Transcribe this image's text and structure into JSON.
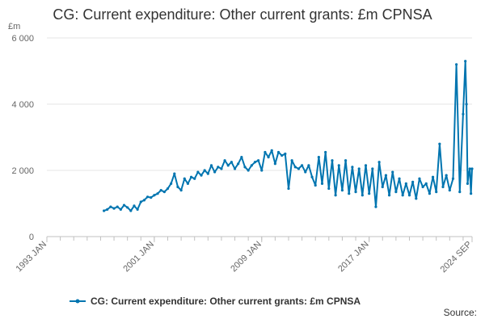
{
  "title": "CG: Current expenditure: Other current grants: £m CPNSA",
  "source_label": "Source:",
  "colors": {
    "series": "#0075b0",
    "grid": "#e6e6e6",
    "axis": "#c0c0c0",
    "text": "#666666"
  },
  "chart_data": {
    "type": "line",
    "title": "CG: Current expenditure: Other current grants: £m CPNSA",
    "unit_label": "£m",
    "xlabel": "",
    "ylabel": "",
    "x_range": [
      "1993-01",
      "2024-09"
    ],
    "ylim": [
      0,
      6000
    ],
    "y_ticks": [
      {
        "value": 0,
        "label": "0"
      },
      {
        "value": 2000,
        "label": "2 000"
      },
      {
        "value": 4000,
        "label": "4 000"
      },
      {
        "value": 6000,
        "label": "6 000"
      }
    ],
    "x_ticks": [
      {
        "date": "1993-01",
        "label": "1993 JAN"
      },
      {
        "date": "2001-01",
        "label": "2001 JAN"
      },
      {
        "date": "2009-01",
        "label": "2009 JAN"
      },
      {
        "date": "2017-01",
        "label": "2017 JAN"
      },
      {
        "date": "2024-09",
        "label": "2024 SEP"
      }
    ],
    "grid": true,
    "legend_position": "bottom",
    "series": [
      {
        "name": "CG: Current expenditure: Other current grants: £m CPNSA",
        "points": [
          [
            "1997-04",
            780
          ],
          [
            "1997-07",
            820
          ],
          [
            "1997-10",
            900
          ],
          [
            "1998-01",
            850
          ],
          [
            "1998-04",
            900
          ],
          [
            "1998-07",
            820
          ],
          [
            "1998-10",
            950
          ],
          [
            "1999-01",
            880
          ],
          [
            "1999-04",
            780
          ],
          [
            "1999-07",
            930
          ],
          [
            "1999-10",
            820
          ],
          [
            "2000-01",
            1050
          ],
          [
            "2000-04",
            1100
          ],
          [
            "2000-07",
            1200
          ],
          [
            "2000-10",
            1180
          ],
          [
            "2001-01",
            1250
          ],
          [
            "2001-04",
            1300
          ],
          [
            "2001-07",
            1400
          ],
          [
            "2001-10",
            1350
          ],
          [
            "2002-01",
            1450
          ],
          [
            "2002-04",
            1600
          ],
          [
            "2002-07",
            1900
          ],
          [
            "2002-10",
            1500
          ],
          [
            "2003-01",
            1400
          ],
          [
            "2003-04",
            1750
          ],
          [
            "2003-07",
            1600
          ],
          [
            "2003-10",
            1800
          ],
          [
            "2004-01",
            1750
          ],
          [
            "2004-04",
            1950
          ],
          [
            "2004-07",
            1850
          ],
          [
            "2004-10",
            2000
          ],
          [
            "2005-01",
            1900
          ],
          [
            "2005-04",
            2150
          ],
          [
            "2005-07",
            1950
          ],
          [
            "2005-10",
            2100
          ],
          [
            "2006-01",
            2050
          ],
          [
            "2006-04",
            2300
          ],
          [
            "2006-07",
            2150
          ],
          [
            "2006-10",
            2250
          ],
          [
            "2007-01",
            2050
          ],
          [
            "2007-04",
            2200
          ],
          [
            "2007-07",
            2400
          ],
          [
            "2007-10",
            2100
          ],
          [
            "2008-01",
            2000
          ],
          [
            "2008-04",
            2150
          ],
          [
            "2008-07",
            2250
          ],
          [
            "2008-10",
            2300
          ],
          [
            "2009-01",
            2000
          ],
          [
            "2009-04",
            2550
          ],
          [
            "2009-07",
            2400
          ],
          [
            "2009-10",
            2600
          ],
          [
            "2010-01",
            2200
          ],
          [
            "2010-04",
            2550
          ],
          [
            "2010-07",
            2450
          ],
          [
            "2010-10",
            2500
          ],
          [
            "2011-01",
            1450
          ],
          [
            "2011-04",
            2300
          ],
          [
            "2011-07",
            2100
          ],
          [
            "2011-10",
            2050
          ],
          [
            "2012-01",
            2150
          ],
          [
            "2012-04",
            1950
          ],
          [
            "2012-07",
            2150
          ],
          [
            "2012-10",
            1800
          ],
          [
            "2013-01",
            1550
          ],
          [
            "2013-04",
            2400
          ],
          [
            "2013-07",
            1600
          ],
          [
            "2013-10",
            2550
          ],
          [
            "2014-01",
            1450
          ],
          [
            "2014-04",
            2300
          ],
          [
            "2014-07",
            1250
          ],
          [
            "2014-10",
            2150
          ],
          [
            "2015-01",
            1400
          ],
          [
            "2015-04",
            2300
          ],
          [
            "2015-07",
            1300
          ],
          [
            "2015-10",
            2100
          ],
          [
            "2016-01",
            1350
          ],
          [
            "2016-04",
            2050
          ],
          [
            "2016-07",
            1250
          ],
          [
            "2016-10",
            2150
          ],
          [
            "2017-01",
            1300
          ],
          [
            "2017-04",
            2050
          ],
          [
            "2017-07",
            900
          ],
          [
            "2017-10",
            2250
          ],
          [
            "2018-01",
            1500
          ],
          [
            "2018-04",
            1850
          ],
          [
            "2018-07",
            1250
          ],
          [
            "2018-10",
            1950
          ],
          [
            "2019-01",
            1350
          ],
          [
            "2019-04",
            1750
          ],
          [
            "2019-07",
            1250
          ],
          [
            "2019-10",
            1600
          ],
          [
            "2020-01",
            1250
          ],
          [
            "2020-04",
            1650
          ],
          [
            "2020-07",
            1150
          ],
          [
            "2020-10",
            1750
          ],
          [
            "2021-01",
            1500
          ],
          [
            "2021-04",
            1600
          ],
          [
            "2021-07",
            1300
          ],
          [
            "2021-10",
            1800
          ],
          [
            "2022-01",
            1350
          ],
          [
            "2022-04",
            2800
          ],
          [
            "2022-07",
            1500
          ],
          [
            "2022-10",
            1850
          ],
          [
            "2023-01",
            1400
          ],
          [
            "2023-04",
            1750
          ],
          [
            "2023-07",
            5200
          ],
          [
            "2023-10",
            1350
          ],
          [
            "2024-01",
            3700
          ],
          [
            "2024-03",
            5300
          ],
          [
            "2024-04",
            4000
          ],
          [
            "2024-05",
            1600
          ],
          [
            "2024-06",
            1900
          ],
          [
            "2024-07",
            2050
          ],
          [
            "2024-08",
            1300
          ],
          [
            "2024-09",
            2050
          ]
        ]
      }
    ]
  }
}
